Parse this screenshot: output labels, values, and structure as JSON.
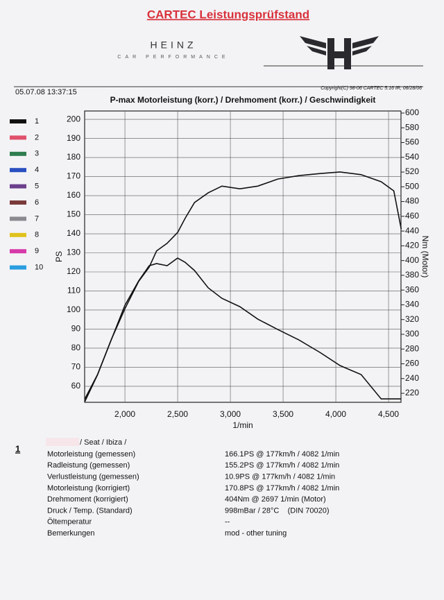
{
  "header": {
    "title": "CARTEC Leistungsprüfstand",
    "brand": "HEINZ",
    "brand_sub": "CAR PERFORMANCE",
    "timestamp": "05.07.08 13:37:15",
    "copyright": "Copyright(C) 98-06 CARTEC 5.16 IR, 06/28/06"
  },
  "run_legend": [
    {
      "label": "1",
      "color": "#111111"
    },
    {
      "label": "2",
      "color": "#e0506a"
    },
    {
      "label": "3",
      "color": "#2e7d4f"
    },
    {
      "label": "4",
      "color": "#2a4fc0"
    },
    {
      "label": "5",
      "color": "#6b3f8c"
    },
    {
      "label": "6",
      "color": "#7a3a3a"
    },
    {
      "label": "7",
      "color": "#8a8a90"
    },
    {
      "label": "8",
      "color": "#e0c21e"
    },
    {
      "label": "9",
      "color": "#d63aa8"
    },
    {
      "label": "10",
      "color": "#2a9ee0"
    }
  ],
  "chart_data": {
    "type": "line",
    "title": "P-max Motorleistung (korr.) / Drehmoment (korr.) / Geschwindigkeit",
    "x_label": "1/min",
    "y_label": "PS",
    "y2_label": "Nm (Motor)",
    "x": [
      1620,
      1740,
      1870,
      2000,
      2130,
      2230,
      2300,
      2400,
      2500,
      2570,
      2660,
      2790,
      2920,
      3090,
      3260,
      3450,
      3650,
      3850,
      4040,
      4240,
      4430,
      4550,
      4620
    ],
    "series": [
      {
        "name": "Motorleistung",
        "color": "#111111",
        "values": [
          52,
          66,
          84.4,
          100.7,
          115,
          122.5,
          131,
          135,
          140.7,
          148,
          156.4,
          161.5,
          165,
          163.6,
          165,
          168.7,
          170.5,
          171.6,
          172.4,
          171,
          167.3,
          162.5,
          142.5
        ]
      },
      {
        "name": "Drehmoment",
        "color": "#111111",
        "axis": "y2",
        "values": [
          212.4,
          245.4,
          292.4,
          339.4,
          372.3,
          393,
          395.9,
          393,
          403.4,
          397.7,
          386.5,
          363,
          348.8,
          337.5,
          320.6,
          306.5,
          292.4,
          275.4,
          257.6,
          245.4,
          212.4,
          212.4,
          212.4
        ]
      }
    ],
    "xlim": [
      1618,
      4618
    ],
    "xticks": [
      {
        "value": 2000,
        "label": "2,000"
      },
      {
        "value": 2500,
        "label": "2,500"
      },
      {
        "value": 3000,
        "label": "3,000"
      },
      {
        "value": 3500,
        "label": "3,500"
      },
      {
        "value": 4000,
        "label": "4,000"
      },
      {
        "value": 4500,
        "label": "4,500"
      }
    ],
    "ylim": [
      51.6,
      204.4
    ],
    "yticks": [
      60,
      70,
      80,
      90,
      100,
      110,
      120,
      130,
      140,
      150,
      160,
      170,
      180,
      190,
      200
    ],
    "y2lim": [
      207.8,
      602.8
    ],
    "y2ticks": [
      220,
      240,
      260,
      280,
      300,
      320,
      340,
      360,
      380,
      400,
      420,
      440,
      460,
      480,
      500,
      520,
      540,
      560,
      580,
      600
    ],
    "grid": true
  },
  "results": {
    "run": "1",
    "vehicle": "/ Seat / Ibiza /",
    "rows": [
      [
        "Motorleistung (gemessen)",
        "166.1PS @ 177km/h / 4082 1/min"
      ],
      [
        "Radleistung (gemessen)",
        "155.2PS @ 177km/h / 4082 1/min"
      ],
      [
        "Verlustleistung (gemessen)",
        "10.9PS @ 177km/h / 4082 1/min"
      ],
      [
        "Motorleistung (korrigiert)",
        "170.8PS @ 177km/h / 4082 1/min"
      ],
      [
        "Drehmoment (korrigiert)",
        "404Nm @ 2697 1/min (Motor)"
      ],
      [
        "Druck / Temp. (Standard)",
        "998mBar / 28°C    (DIN 70020)"
      ],
      [
        "Öltemperatur",
        "--"
      ],
      [
        "Bemerkungen",
        "mod - other tuning"
      ]
    ]
  }
}
